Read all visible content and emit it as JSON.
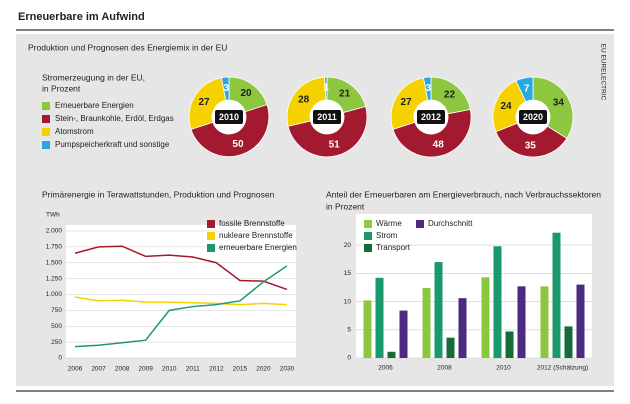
{
  "title": "Erneuerbare im Aufwind",
  "subtitle": "Produktion und Prognosen des Energiemix in der EU",
  "source": "EU EURELECTRIC",
  "chart_data": [
    {
      "type": "donuts",
      "title": "Stromerzeugung in der EU,",
      "subtitle": "in Prozent",
      "categories": [
        "Erneuerbare Energien",
        "Stein-, Braunkohle, Erdöl, Erdgas",
        "Atomstrom",
        "Pumpspeicherkraft und sonstige"
      ],
      "colors": [
        "#8dc63f",
        "#a3192f",
        "#f5d100",
        "#29a8e0"
      ],
      "series": [
        {
          "name": "2010",
          "values": [
            20,
            50,
            27,
            3
          ]
        },
        {
          "name": "2011",
          "values": [
            21,
            51,
            28,
            1
          ]
        },
        {
          "name": "2012",
          "values": [
            22,
            48,
            27,
            3
          ]
        },
        {
          "name": "2020",
          "values": [
            34,
            35,
            24,
            7
          ]
        }
      ]
    },
    {
      "type": "line",
      "title": "Primärenergie in Terawattstunden, Produktion und Prognosen",
      "y_label": "TWh",
      "categories": [
        "2006",
        "2007",
        "2008",
        "2009",
        "2010",
        "2011",
        "2012",
        "2015",
        "2020",
        "2030"
      ],
      "ylim": [
        0,
        2000
      ],
      "yticks": [
        0,
        250,
        500,
        750,
        {
          "value": 1000,
          "label": "1.000"
        },
        {
          "value": 1250,
          "label": "1.250"
        },
        {
          "value": 1500,
          "label": "1.500"
        },
        {
          "value": 1750,
          "label": "1.750"
        },
        {
          "value": 2000,
          "label": "2.000"
        }
      ],
      "grid": true,
      "series": [
        {
          "name": "fossile Brennstoffe",
          "color": "#a3192f",
          "values": [
            1650,
            1750,
            1760,
            1600,
            1620,
            1590,
            1500,
            1220,
            1210,
            1080
          ]
        },
        {
          "name": "nukleare Brennstoffe",
          "color": "#f5d100",
          "values": [
            960,
            900,
            910,
            880,
            880,
            870,
            860,
            840,
            860,
            840
          ]
        },
        {
          "name": "erneuerbare Energien",
          "color": "#1a9a6c",
          "values": [
            180,
            200,
            240,
            280,
            750,
            810,
            840,
            900,
            1200,
            1450
          ]
        }
      ]
    },
    {
      "type": "bar",
      "title": "Anteil der Erneuerbaren am Energieverbrauch, nach Verbrauchssektoren",
      "subtitle": "in Prozent",
      "categories": [
        "2006",
        "2008",
        "2010",
        "2012 (Schätzung)"
      ],
      "ylim": [
        0,
        22.5
      ],
      "yticks": [
        0,
        5,
        10,
        15,
        20
      ],
      "grid": true,
      "series": [
        {
          "name": "Wärme",
          "color": "#8dc63f",
          "values": [
            10.2,
            12.4,
            14.3,
            12.7
          ]
        },
        {
          "name": "Strom",
          "color": "#1a9a6c",
          "values": [
            14.2,
            17,
            19.8,
            22.2
          ]
        },
        {
          "name": "Transport",
          "color": "#166b3a",
          "values": [
            1.1,
            3.6,
            4.7,
            5.6
          ]
        },
        {
          "name": "Durchschnitt",
          "color": "#4b2a7f",
          "values": [
            8.4,
            10.6,
            12.7,
            13
          ]
        }
      ]
    }
  ]
}
